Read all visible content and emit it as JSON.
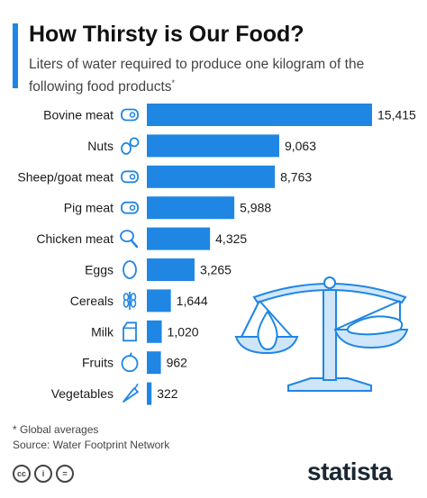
{
  "header": {
    "title": "How Thirsty is Our Food?",
    "subtitle": "Liters of water required to produce one kilogram of the following food products",
    "subtitle_mark": "*"
  },
  "chart_data": {
    "type": "bar",
    "orientation": "horizontal",
    "categories": [
      "Bovine meat",
      "Nuts",
      "Sheep/goat meat",
      "Pig meat",
      "Chicken meat",
      "Eggs",
      "Cereals",
      "Milk",
      "Fruits",
      "Vegetables"
    ],
    "values": [
      15415,
      9063,
      8763,
      5988,
      4325,
      3265,
      1644,
      1020,
      962,
      322
    ],
    "value_labels": [
      "15,415",
      "9,063",
      "8,763",
      "5,988",
      "4,325",
      "3,265",
      "1,644",
      "1,020",
      "962",
      "322"
    ],
    "icons": [
      "steak-icon",
      "nuts-icon",
      "steak-icon",
      "steak-icon",
      "chicken-leg-icon",
      "egg-icon",
      "wheat-icon",
      "milk-carton-icon",
      "apple-icon",
      "carrot-icon"
    ],
    "xlim": [
      0,
      15415
    ],
    "bar_color": "#1f86e3",
    "grid": false
  },
  "footer": {
    "note": "* Global averages",
    "source": "Source: Water Footprint Network",
    "license_icons": [
      "cc-icon",
      "attribution-icon",
      "no-derivatives-icon"
    ],
    "license_glyphs": [
      "cc",
      "i",
      "="
    ],
    "brand": "statista"
  },
  "colors": {
    "accent": "#1f86e3",
    "illustration": "#1f86e3",
    "illustration_light": "#cfe6fa"
  }
}
